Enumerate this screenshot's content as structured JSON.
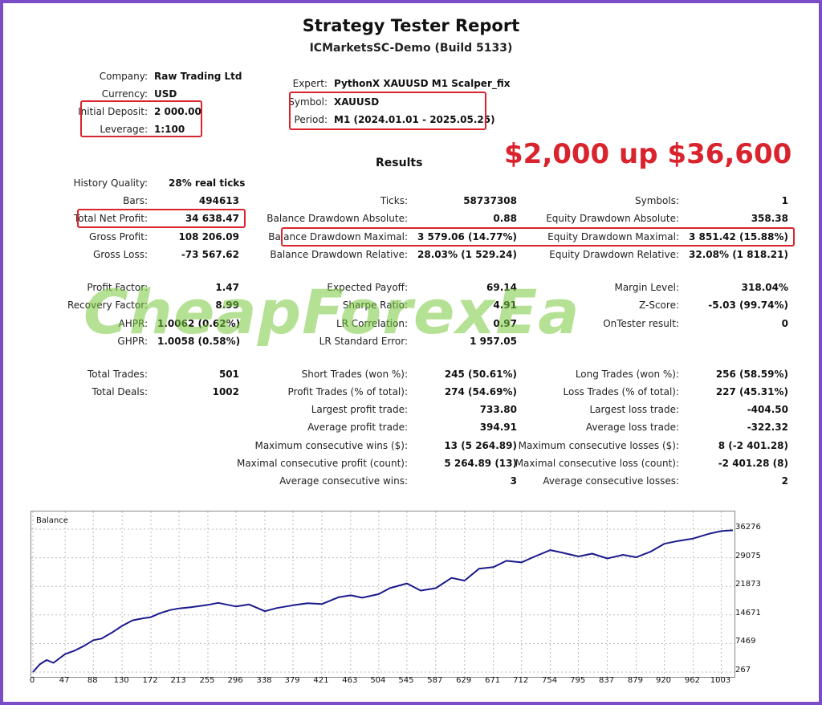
{
  "report": {
    "title": "Strategy Tester Report",
    "subtitle": "ICMarketsSC-Demo (Build 5133)",
    "headline": "$2,000 up $36,600",
    "results_label": "Results",
    "watermark": "CheapForexEa"
  },
  "info_left": [
    {
      "label": "Company:",
      "value": "Raw Trading Ltd"
    },
    {
      "label": "Currency:",
      "value": "USD"
    },
    {
      "label": "Initial Deposit:",
      "value": "2 000.00"
    },
    {
      "label": "Leverage:",
      "value": "1:100"
    }
  ],
  "info_right": [
    {
      "label": "Expert:",
      "value": "PythonX XAUUSD M1 Scalper_fix"
    },
    {
      "label": "Symbol:",
      "value": "XAUUSD"
    },
    {
      "label": "Period:",
      "value": "M1 (2024.01.01 - 2025.05.25)"
    }
  ],
  "stats": {
    "history_quality": {
      "label": "History Quality:",
      "value": "28% real ticks"
    },
    "col1": [
      {
        "label": "Bars:",
        "value": "494613"
      },
      {
        "label": "Total Net Profit:",
        "value": "34 638.47"
      },
      {
        "label": "Gross Profit:",
        "value": "108 206.09"
      },
      {
        "label": "Gross Loss:",
        "value": "-73 567.62"
      },
      {
        "label": "Profit Factor:",
        "value": "1.47"
      },
      {
        "label": "Recovery Factor:",
        "value": "8.99"
      },
      {
        "label": "AHPR:",
        "value": "1.0062 (0.62%)"
      },
      {
        "label": "GHPR:",
        "value": "1.0058 (0.58%)"
      },
      {
        "label": "Total Trades:",
        "value": "501"
      },
      {
        "label": "Total Deals:",
        "value": "1002"
      }
    ],
    "col2": [
      {
        "label": "Ticks:",
        "value": "58737308"
      },
      {
        "label": "Balance Drawdown Absolute:",
        "value": "0.88"
      },
      {
        "label": "Balance Drawdown Maximal:",
        "value": "3 579.06 (14.77%)"
      },
      {
        "label": "Balance Drawdown Relative:",
        "value": "28.03% (1 529.24)"
      },
      {
        "label": "Expected Payoff:",
        "value": "69.14"
      },
      {
        "label": "Sharpe Ratio:",
        "value": "4.91"
      },
      {
        "label": "LR Correlation:",
        "value": "0.97"
      },
      {
        "label": "LR Standard Error:",
        "value": "1 957.05"
      },
      {
        "label": "Short Trades (won %):",
        "value": "245 (50.61%)"
      },
      {
        "label": "Profit Trades (% of total):",
        "value": "274 (54.69%)"
      },
      {
        "label": "Largest profit trade:",
        "value": "733.80"
      },
      {
        "label": "Average profit trade:",
        "value": "394.91"
      },
      {
        "label": "Maximum consecutive wins ($):",
        "value": "13 (5 264.89)"
      },
      {
        "label": "Maximal consecutive profit (count):",
        "value": "5 264.89 (13)"
      },
      {
        "label": "Average consecutive wins:",
        "value": "3"
      }
    ],
    "col3": [
      {
        "label": "Symbols:",
        "value": "1"
      },
      {
        "label": "Equity Drawdown Absolute:",
        "value": "358.38"
      },
      {
        "label": "Equity Drawdown Maximal:",
        "value": "3 851.42 (15.88%)"
      },
      {
        "label": "Equity Drawdown Relative:",
        "value": "32.08% (1 818.21)"
      },
      {
        "label": "Margin Level:",
        "value": "318.04%"
      },
      {
        "label": "Z-Score:",
        "value": "-5.03 (99.74%)"
      },
      {
        "label": "OnTester result:",
        "value": "0"
      },
      {
        "label": "Long Trades (won %):",
        "value": "256 (58.59%)"
      },
      {
        "label": "Loss Trades (% of total):",
        "value": "227 (45.31%)"
      },
      {
        "label": "Largest loss trade:",
        "value": "-404.50"
      },
      {
        "label": "Average loss trade:",
        "value": "-322.32"
      },
      {
        "label": "Maximum consecutive losses ($):",
        "value": "8 (-2 401.28)"
      },
      {
        "label": "Maximal consecutive loss (count):",
        "value": "-2 401.28 (8)"
      },
      {
        "label": "Average consecutive losses:",
        "value": "2"
      }
    ]
  },
  "colors": {
    "highlight": "#d9232d",
    "line": "#1a1a8c",
    "watermark": "#78c83c"
  },
  "chart_data": {
    "type": "line",
    "title": "Balance",
    "series": [
      {
        "name": "Balance",
        "x": [
          0,
          10,
          20,
          30,
          47,
          60,
          75,
          88,
          100,
          115,
          130,
          145,
          160,
          172,
          185,
          200,
          213,
          230,
          255,
          270,
          296,
          315,
          338,
          355,
          379,
          400,
          421,
          445,
          463,
          480,
          504,
          520,
          545,
          565,
          587,
          610,
          629,
          650,
          671,
          690,
          712,
          730,
          754,
          770,
          795,
          815,
          837,
          860,
          879,
          900,
          920,
          940,
          962,
          985,
          1003,
          1020
        ],
        "values": [
          267,
          2200,
          3300,
          2600,
          4800,
          5600,
          6900,
          8300,
          8700,
          10200,
          11900,
          13300,
          13800,
          14100,
          15100,
          15900,
          16300,
          16600,
          17200,
          17700,
          16800,
          17300,
          15600,
          16400,
          17100,
          17600,
          17400,
          19100,
          19600,
          19000,
          19900,
          21400,
          22600,
          20800,
          21400,
          24000,
          23300,
          26300,
          26700,
          28300,
          27900,
          29300,
          31000,
          30400,
          29400,
          30100,
          28900,
          29800,
          29200,
          30600,
          32600,
          33300,
          33900,
          35100,
          35800,
          36000
        ]
      }
    ],
    "x_ticks": [
      "0",
      "47",
      "88",
      "130",
      "172",
      "213",
      "255",
      "296",
      "338",
      "379",
      "421",
      "463",
      "504",
      "545",
      "587",
      "629",
      "671",
      "712",
      "754",
      "795",
      "837",
      "879",
      "920",
      "962",
      "1003"
    ],
    "y_ticks": [
      "36276",
      "29075",
      "21873",
      "14671",
      "7469",
      "267"
    ],
    "xlim": [
      0,
      1020
    ],
    "ylim": [
      267,
      36276
    ]
  }
}
